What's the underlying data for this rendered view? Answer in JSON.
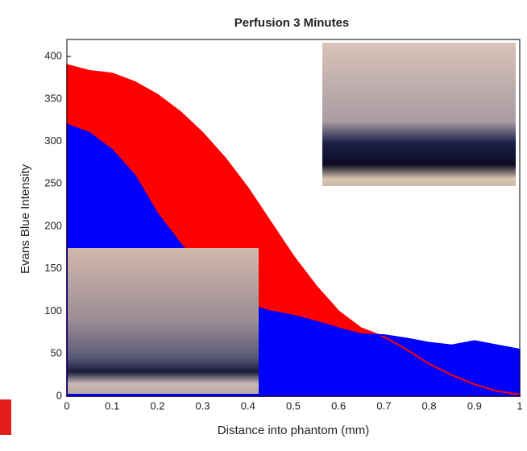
{
  "chart_data": {
    "type": "area",
    "title": "Perfusion 3 Minutes",
    "x_label": "Distance into phantom (mm)",
    "y_label": "Evans Blue Intensity",
    "x": [
      0,
      0.05,
      0.1,
      0.15,
      0.2,
      0.25,
      0.3,
      0.35,
      0.4,
      0.45,
      0.5,
      0.55,
      0.6,
      0.65,
      0.7,
      0.75,
      0.8,
      0.85,
      0.9,
      0.95,
      1
    ],
    "series": [
      {
        "color": "#ff0000",
        "values": [
          390,
          383,
          380,
          370,
          355,
          335,
          310,
          280,
          245,
          205,
          165,
          130,
          100,
          80,
          70,
          55,
          38,
          25,
          14,
          6,
          2
        ]
      },
      {
        "color": "#0000ff",
        "values": [
          320,
          310,
          290,
          260,
          215,
          180,
          150,
          120,
          108,
          100,
          95,
          88,
          80,
          73,
          72,
          68,
          63,
          60,
          65,
          60,
          55
        ]
      }
    ],
    "xlim": [
      0,
      1
    ],
    "ylim": [
      0,
      420
    ],
    "xticks": [
      0,
      0.1,
      0.2,
      0.3,
      0.4,
      0.5,
      0.6,
      0.7,
      0.8,
      0.9,
      1
    ],
    "yticks": [
      0,
      50,
      100,
      150,
      200,
      250,
      300,
      350,
      400
    ]
  }
}
